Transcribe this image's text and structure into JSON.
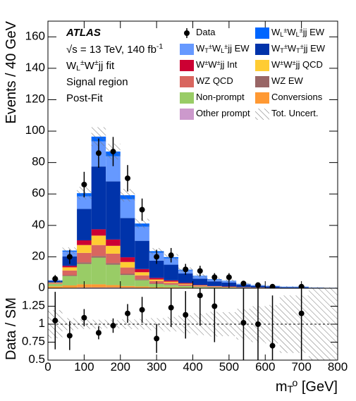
{
  "chart_data": {
    "type": "stacked_histogram",
    "annotations": [
      "ATLAS",
      "√s = 13 TeV, 140 fb^{-1}",
      "W_L^±W^±jj fit",
      "Signal region",
      "Post-Fit"
    ],
    "ylabel": "Events / 40 GeV",
    "xlabel": "m_T^o [GeV]",
    "xlim": [
      0,
      800
    ],
    "xticks": [
      0,
      100,
      200,
      300,
      400,
      500,
      600,
      700,
      800
    ],
    "ylim": [
      0,
      170
    ],
    "yticks": [
      0,
      20,
      40,
      60,
      80,
      100,
      120,
      140,
      160
    ],
    "bins": [
      0,
      40,
      80,
      120,
      160,
      200,
      240,
      280,
      320,
      360,
      400,
      440,
      480,
      520,
      560,
      600,
      640,
      680,
      720,
      760,
      800
    ],
    "data": {
      "name": "Data",
      "values": [
        6,
        20,
        66,
        86,
        87,
        70,
        50,
        20,
        21,
        12,
        11,
        7,
        7,
        3,
        2,
        1,
        null,
        1,
        null,
        null
      ],
      "errors": [
        2.4,
        4.5,
        8.1,
        9.3,
        9.3,
        8.4,
        7.1,
        4.5,
        4.6,
        3.5,
        3.3,
        2.6,
        2.6,
        1.7,
        1.4,
        1,
        null,
        1,
        null,
        null
      ]
    },
    "series": [
      {
        "name": "W_L^±W_L^±jj EW",
        "color": "#0066ff",
        "values": [
          0.1,
          0.7,
          2,
          3,
          3,
          2.5,
          2,
          1,
          0.8,
          0.4,
          0.3,
          0.2,
          0.2,
          0.1,
          0.1,
          0.1,
          0.1,
          0.1,
          0,
          0
        ]
      },
      {
        "name": "W_T^±W_L^±jj EW",
        "color": "#6699ff",
        "values": [
          0.3,
          3,
          8,
          16,
          16,
          12,
          9,
          5,
          4,
          2,
          1.5,
          1.2,
          1,
          0.5,
          0.4,
          0.3,
          0.3,
          0.3,
          0.2,
          0.1
        ]
      },
      {
        "name": "W_T^±W_T^±jj EW",
        "color": "#0033aa",
        "values": [
          1,
          6,
          20,
          40,
          37,
          25,
          18,
          11,
          10,
          6,
          4,
          3,
          2.5,
          1.5,
          1,
          0.8,
          0.6,
          0.6,
          0.3,
          0.2
        ]
      },
      {
        "name": "W^±W^±jj Int",
        "color": "#cc0033",
        "values": [
          0.1,
          1,
          3,
          4,
          4,
          3,
          2,
          1,
          0.8,
          0.5,
          0.3,
          0.2,
          0.2,
          0.1,
          0.1,
          0.1,
          0,
          0,
          0,
          0
        ]
      },
      {
        "name": "W^±W^±jj QCD",
        "color": "#ffcc33",
        "values": [
          0.3,
          2,
          5,
          6,
          5,
          3.5,
          2,
          1,
          0.8,
          0.5,
          0.3,
          0.2,
          0.2,
          0.1,
          0.1,
          0,
          0,
          0,
          0,
          0
        ]
      },
      {
        "name": "WZ QCD",
        "color": "#d9665f",
        "values": [
          0.5,
          3,
          6,
          7,
          6,
          4,
          2.5,
          1.5,
          1,
          0.8,
          0.5,
          0.3,
          0.2,
          0.1,
          0.1,
          0.1,
          0,
          0,
          0,
          0
        ]
      },
      {
        "name": "WZ EW",
        "color": "#996666",
        "values": [
          0.1,
          0.5,
          1,
          1,
          1,
          0.8,
          0.6,
          0.4,
          0.3,
          0.2,
          0.2,
          0.1,
          0.1,
          0.1,
          0.1,
          0,
          0,
          0,
          0,
          0
        ]
      },
      {
        "name": "Non-prompt",
        "color": "#99cc66",
        "values": [
          1.5,
          6,
          13,
          17,
          13,
          7,
          4,
          2,
          1.5,
          1,
          0.5,
          0.4,
          0.3,
          0.2,
          0.1,
          0.1,
          0,
          0,
          0,
          0
        ]
      },
      {
        "name": "Conversions",
        "color": "#ff9933",
        "values": [
          1,
          1.5,
          2,
          2,
          1.5,
          1,
          0.8,
          0.5,
          0.4,
          0.3,
          0.2,
          0.1,
          0.1,
          0.1,
          0,
          0,
          0,
          0,
          0,
          0
        ]
      },
      {
        "name": "Other prompt",
        "color": "#cc99cc",
        "values": [
          0.2,
          0.3,
          0.5,
          0.5,
          0.5,
          0.4,
          0.3,
          0.2,
          0.2,
          0.1,
          0.1,
          0.1,
          0,
          0,
          0,
          0,
          0,
          0,
          0,
          0
        ]
      }
    ],
    "uncertainty": {
      "name": "Tot. Uncert.",
      "values": [
        1,
        2,
        4,
        6,
        5,
        4,
        3,
        2,
        2,
        1.5,
        1.2,
        1,
        0.8,
        0.6,
        0.5,
        0.4,
        0.4,
        0.4,
        0.3,
        0.3
      ]
    },
    "ratio": {
      "ylabel": "Data / SM",
      "ylim": [
        0.5,
        1.5
      ],
      "yticks": [
        0.5,
        0.75,
        1,
        1.25
      ],
      "reference": 1,
      "values": [
        1.05,
        0.84,
        1.09,
        0.88,
        0.98,
        1.15,
        1.2,
        0.8,
        1.23,
        1.13,
        1.4,
        1.25,
        null,
        1.02,
        1.0,
        0.7,
        null,
        1.15,
        null,
        null
      ],
      "errors": [
        0.4,
        0.2,
        0.12,
        0.09,
        0.1,
        0.13,
        0.18,
        0.2,
        0.27,
        0.33,
        0.42,
        0.5,
        null,
        0.6,
        0.7,
        0.7,
        null,
        1.1,
        null,
        null
      ]
    }
  }
}
